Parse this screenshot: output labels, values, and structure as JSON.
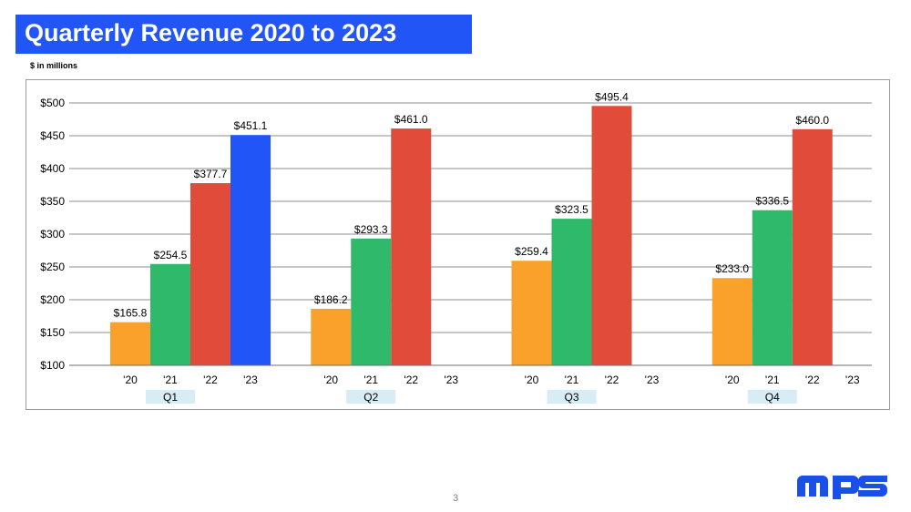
{
  "slide": {
    "title": "Quarterly Revenue 2020 to 2023",
    "subtitle": "$ in millions",
    "page_number": "3",
    "logo_text": "mps"
  },
  "colors": {
    "title_bg": "#2255f5",
    "2020": "#f9a12a",
    "2021": "#2fb96a",
    "2022": "#e04b3a",
    "2023": "#2155f7",
    "quarter_label_bg": "#d8ecf3",
    "logo": "#1a4fe8"
  },
  "chart_data": {
    "type": "bar",
    "title": "Quarterly Revenue 2020 to 2023",
    "ylabel": "$ in millions",
    "ylim": [
      100,
      500
    ],
    "yticks": [
      100,
      150,
      200,
      250,
      300,
      350,
      400,
      450,
      500
    ],
    "ytick_labels": [
      "$100",
      "$150",
      "$200",
      "$250",
      "$300",
      "$350",
      "$400",
      "$450",
      "$500"
    ],
    "grid": true,
    "groups": [
      "Q1",
      "Q2",
      "Q3",
      "Q4"
    ],
    "years": [
      "2020",
      "2021",
      "2022",
      "2023"
    ],
    "year_labels": [
      "'20",
      "'21",
      "'22",
      "'23"
    ],
    "series": [
      {
        "year": "2020",
        "values": [
          165.8,
          186.2,
          259.4,
          233.0
        ],
        "labels": [
          "$165.8",
          "$186.2",
          "$259.4",
          "$233.0"
        ]
      },
      {
        "year": "2021",
        "values": [
          254.5,
          293.3,
          323.5,
          336.5
        ],
        "labels": [
          "$254.5",
          "$293.3",
          "$323.5",
          "$336.5"
        ]
      },
      {
        "year": "2022",
        "values": [
          377.7,
          461.0,
          495.4,
          460.0
        ],
        "labels": [
          "$377.7",
          "$461.0",
          "$495.4",
          "$460.0"
        ]
      },
      {
        "year": "2023",
        "values": [
          451.1,
          null,
          null,
          null
        ],
        "labels": [
          "$451.1",
          "",
          "",
          ""
        ]
      }
    ]
  }
}
